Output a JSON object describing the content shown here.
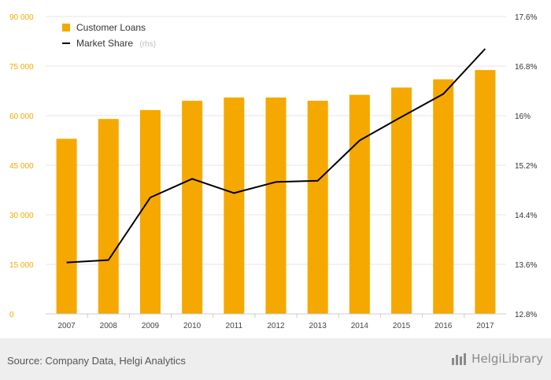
{
  "chart_data": {
    "type": "bar",
    "categories": [
      "2007",
      "2008",
      "2009",
      "2010",
      "2011",
      "2012",
      "2013",
      "2014",
      "2015",
      "2016",
      "2017"
    ],
    "series": [
      {
        "name": "Customer Loans",
        "type": "bar",
        "axis": "left",
        "color": "#f5a800",
        "values": [
          53000,
          59000,
          61700,
          64500,
          65500,
          65500,
          64500,
          66300,
          68500,
          71000,
          73800
        ]
      },
      {
        "name": "Market Share",
        "name_suffix": "(rhs)",
        "type": "line",
        "axis": "right",
        "color": "#000000",
        "values": [
          13.63,
          13.67,
          14.68,
          14.98,
          14.75,
          14.93,
          14.95,
          15.6,
          15.98,
          16.35,
          17.08
        ]
      }
    ],
    "y_left": {
      "ylim": [
        0,
        90000
      ],
      "ticks": [
        "0",
        "15 000",
        "30 000",
        "45 000",
        "60 000",
        "75 000",
        "90 000"
      ]
    },
    "y_right": {
      "ylim": [
        12.8,
        17.6
      ],
      "ticks": [
        "12.8%",
        "13.6%",
        "14.4%",
        "15.2%",
        "16%",
        "16.8%",
        "17.6%"
      ]
    },
    "grid": true,
    "legend_placement": "top-left"
  },
  "footer": {
    "source": "Source: Company Data, Helgi Analytics",
    "logo_text": "HelgiLibrary",
    "logo_icon": "helgi-logo-icon"
  }
}
